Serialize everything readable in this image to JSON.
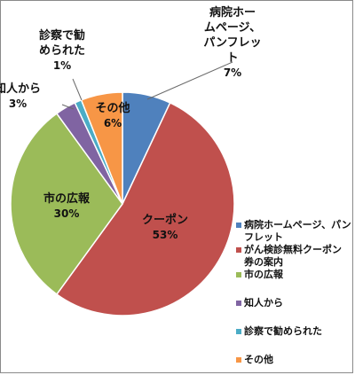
{
  "chart_data": {
    "type": "pie",
    "series": [
      {
        "name": "病院ホームページ、パンフレット",
        "label_lines": [
          "病院ホー",
          "ムページ、",
          "パンフレッ",
          "ト"
        ],
        "value": 7,
        "pct_text": "7%",
        "color": "#4f81bd"
      },
      {
        "name": "がん検診無料クーポン券の案内",
        "label_lines": [
          "クーポン"
        ],
        "value": 53,
        "pct_text": "53%",
        "color": "#c0504d"
      },
      {
        "name": "市の広報",
        "label_lines": [
          "市の広報"
        ],
        "value": 30,
        "pct_text": "30%",
        "color": "#9bbb59"
      },
      {
        "name": "知人から",
        "label_lines": [
          "知人から"
        ],
        "value": 3,
        "pct_text": "3%",
        "color": "#8064a2"
      },
      {
        "name": "診察で勧められた",
        "label_lines": [
          "診察で勧",
          "められた"
        ],
        "value": 1,
        "pct_text": "1%",
        "color": "#4bacc6"
      },
      {
        "name": "その他",
        "label_lines": [
          "その他"
        ],
        "value": 6,
        "pct_text": "6%",
        "color": "#f79646"
      }
    ],
    "legend_position": "right"
  },
  "legend": {
    "items": [
      {
        "lines": [
          "病院ホームページ、パン",
          "フレット"
        ]
      },
      {
        "lines": [
          "がん検診無料クーポン",
          "券の案内"
        ]
      },
      {
        "lines": [
          "市の広報"
        ]
      },
      {
        "lines": [
          "知人から"
        ]
      },
      {
        "lines": [
          "診察で勧められた"
        ]
      },
      {
        "lines": [
          "その他"
        ]
      }
    ]
  }
}
